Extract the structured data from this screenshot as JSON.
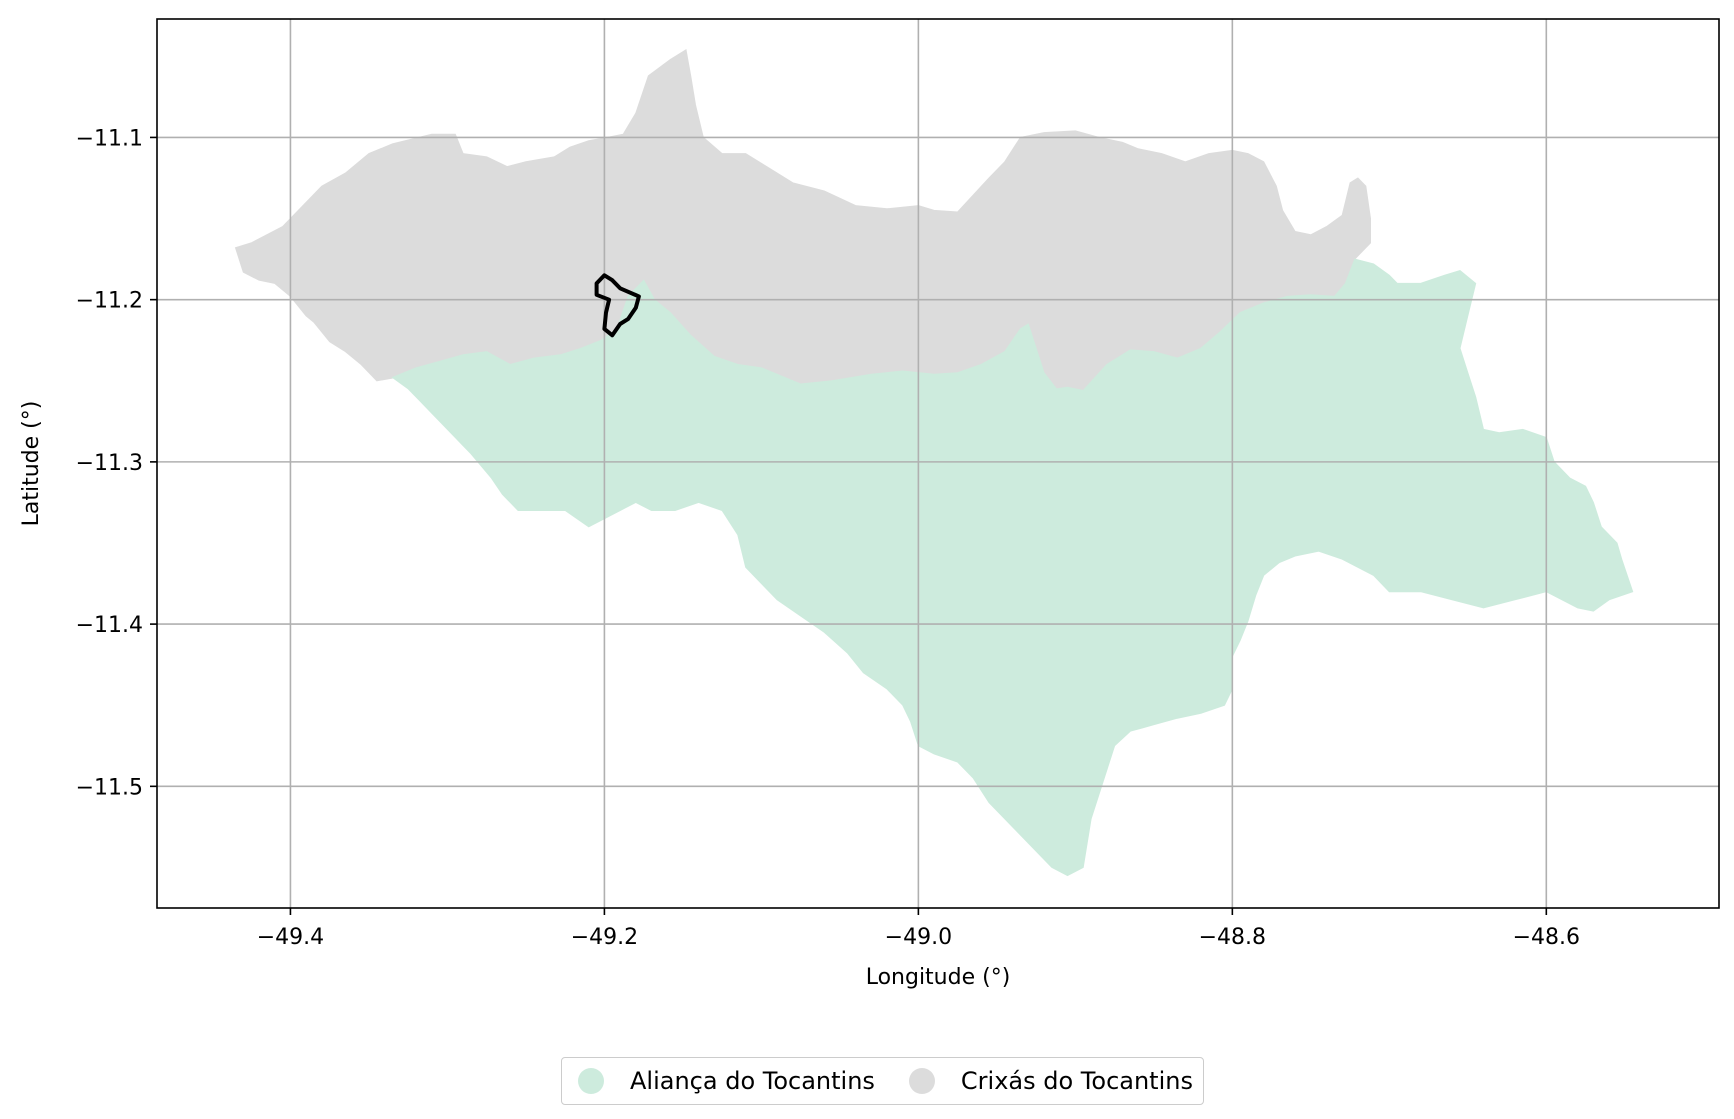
{
  "chart_data": {
    "type": "map",
    "title": "",
    "xlabel": "Longitude (°)",
    "ylabel": "Latitude (°)",
    "xlim": [
      -49.485,
      -48.49
    ],
    "ylim": [
      -11.575,
      -11.027
    ],
    "xticks": [
      -49.4,
      -49.2,
      -49.0,
      -48.8,
      -48.6
    ],
    "yticks": [
      -11.1,
      -11.2,
      -11.3,
      -11.4,
      -11.5
    ],
    "xtick_labels": [
      "−49.4",
      "−49.2",
      "−49.0",
      "−48.8",
      "−48.6"
    ],
    "ytick_labels": [
      "−11.1",
      "−11.2",
      "−11.3",
      "−11.4",
      "−11.5"
    ],
    "grid": true,
    "legend_position": "bottom-center, below axes",
    "regions": [
      {
        "name": "Crixás do Tocantins",
        "color": "#dcdcdc",
        "polygon": [
          [
            -49.435,
            -11.168
          ],
          [
            -49.425,
            -11.165
          ],
          [
            -49.405,
            -11.155
          ],
          [
            -49.39,
            -11.14
          ],
          [
            -49.38,
            -11.13
          ],
          [
            -49.365,
            -11.122
          ],
          [
            -49.35,
            -11.11
          ],
          [
            -49.335,
            -11.104
          ],
          [
            -49.31,
            -11.098
          ],
          [
            -49.295,
            -11.098
          ],
          [
            -49.29,
            -11.11
          ],
          [
            -49.275,
            -11.112
          ],
          [
            -49.262,
            -11.118
          ],
          [
            -49.25,
            -11.115
          ],
          [
            -49.232,
            -11.112
          ],
          [
            -49.222,
            -11.106
          ],
          [
            -49.21,
            -11.102
          ],
          [
            -49.198,
            -11.1
          ],
          [
            -49.188,
            -11.098
          ],
          [
            -49.18,
            -11.085
          ],
          [
            -49.172,
            -11.062
          ],
          [
            -49.158,
            -11.052
          ],
          [
            -49.148,
            -11.046
          ],
          [
            -49.145,
            -11.062
          ],
          [
            -49.142,
            -11.08
          ],
          [
            -49.137,
            -11.1
          ],
          [
            -49.125,
            -11.11
          ],
          [
            -49.11,
            -11.11
          ],
          [
            -49.09,
            -11.122
          ],
          [
            -49.08,
            -11.128
          ],
          [
            -49.06,
            -11.133
          ],
          [
            -49.04,
            -11.142
          ],
          [
            -49.02,
            -11.144
          ],
          [
            -49.0,
            -11.142
          ],
          [
            -48.99,
            -11.145
          ],
          [
            -48.975,
            -11.146
          ],
          [
            -48.955,
            -11.125
          ],
          [
            -48.945,
            -11.115
          ],
          [
            -48.935,
            -11.1
          ],
          [
            -48.92,
            -11.097
          ],
          [
            -48.9,
            -11.096
          ],
          [
            -48.885,
            -11.1
          ],
          [
            -48.87,
            -11.103
          ],
          [
            -48.86,
            -11.107
          ],
          [
            -48.845,
            -11.11
          ],
          [
            -48.83,
            -11.115
          ],
          [
            -48.815,
            -11.11
          ],
          [
            -48.8,
            -11.108
          ],
          [
            -48.79,
            -11.11
          ],
          [
            -48.78,
            -11.115
          ],
          [
            -48.772,
            -11.13
          ],
          [
            -48.768,
            -11.145
          ],
          [
            -48.76,
            -11.158
          ],
          [
            -48.75,
            -11.16
          ],
          [
            -48.74,
            -11.155
          ],
          [
            -48.73,
            -11.148
          ],
          [
            -48.725,
            -11.128
          ],
          [
            -48.72,
            -11.125
          ],
          [
            -48.715,
            -11.13
          ],
          [
            -48.712,
            -11.15
          ],
          [
            -48.712,
            -11.165
          ],
          [
            -48.722,
            -11.175
          ],
          [
            -48.728,
            -11.19
          ],
          [
            -48.735,
            -11.198
          ],
          [
            -48.75,
            -11.197
          ],
          [
            -48.765,
            -11.198
          ],
          [
            -48.78,
            -11.202
          ],
          [
            -48.795,
            -11.208
          ],
          [
            -48.808,
            -11.22
          ],
          [
            -48.82,
            -11.23
          ],
          [
            -48.835,
            -11.236
          ],
          [
            -48.85,
            -11.232
          ],
          [
            -48.865,
            -11.231
          ],
          [
            -48.88,
            -11.24
          ],
          [
            -48.895,
            -11.256
          ],
          [
            -48.905,
            -11.254
          ],
          [
            -48.912,
            -11.255
          ],
          [
            -48.92,
            -11.245
          ],
          [
            -48.93,
            -11.215
          ],
          [
            -48.935,
            -11.218
          ],
          [
            -48.945,
            -11.232
          ],
          [
            -48.96,
            -11.24
          ],
          [
            -48.975,
            -11.245
          ],
          [
            -48.99,
            -11.246
          ],
          [
            -49.01,
            -11.244
          ],
          [
            -49.03,
            -11.246
          ],
          [
            -49.055,
            -11.25
          ],
          [
            -49.075,
            -11.252
          ],
          [
            -49.1,
            -11.242
          ],
          [
            -49.115,
            -11.24
          ],
          [
            -49.13,
            -11.235
          ],
          [
            -49.145,
            -11.222
          ],
          [
            -49.158,
            -11.208
          ],
          [
            -49.168,
            -11.2
          ],
          [
            -49.175,
            -11.188
          ],
          [
            -49.185,
            -11.198
          ],
          [
            -49.192,
            -11.218
          ],
          [
            -49.202,
            -11.225
          ],
          [
            -49.215,
            -11.23
          ],
          [
            -49.228,
            -11.234
          ],
          [
            -49.245,
            -11.236
          ],
          [
            -49.26,
            -11.24
          ],
          [
            -49.275,
            -11.232
          ],
          [
            -49.29,
            -11.234
          ],
          [
            -49.305,
            -11.238
          ],
          [
            -49.32,
            -11.242
          ],
          [
            -49.333,
            -11.248
          ],
          [
            -49.345,
            -11.25
          ],
          [
            -49.355,
            -11.24
          ],
          [
            -49.365,
            -11.232
          ],
          [
            -49.375,
            -11.226
          ],
          [
            -49.385,
            -11.214
          ],
          [
            -49.39,
            -11.21
          ],
          [
            -49.4,
            -11.198
          ],
          [
            -49.41,
            -11.19
          ],
          [
            -49.42,
            -11.188
          ],
          [
            -49.43,
            -11.183
          ]
        ]
      },
      {
        "name": "Aliança do Tocantins",
        "color": "#cdebdd",
        "polygon": [
          [
            -49.335,
            -11.248
          ],
          [
            -49.32,
            -11.242
          ],
          [
            -49.305,
            -11.238
          ],
          [
            -49.29,
            -11.234
          ],
          [
            -49.275,
            -11.232
          ],
          [
            -49.26,
            -11.24
          ],
          [
            -49.245,
            -11.236
          ],
          [
            -49.228,
            -11.234
          ],
          [
            -49.215,
            -11.23
          ],
          [
            -49.202,
            -11.225
          ],
          [
            -49.192,
            -11.218
          ],
          [
            -49.185,
            -11.198
          ],
          [
            -49.175,
            -11.188
          ],
          [
            -49.168,
            -11.2
          ],
          [
            -49.158,
            -11.208
          ],
          [
            -49.145,
            -11.222
          ],
          [
            -49.13,
            -11.235
          ],
          [
            -49.115,
            -11.24
          ],
          [
            -49.1,
            -11.242
          ],
          [
            -49.075,
            -11.252
          ],
          [
            -49.055,
            -11.25
          ],
          [
            -49.03,
            -11.246
          ],
          [
            -49.01,
            -11.244
          ],
          [
            -48.99,
            -11.246
          ],
          [
            -48.975,
            -11.245
          ],
          [
            -48.96,
            -11.24
          ],
          [
            -48.945,
            -11.232
          ],
          [
            -48.935,
            -11.218
          ],
          [
            -48.93,
            -11.215
          ],
          [
            -48.92,
            -11.245
          ],
          [
            -48.912,
            -11.255
          ],
          [
            -48.905,
            -11.254
          ],
          [
            -48.895,
            -11.256
          ],
          [
            -48.88,
            -11.24
          ],
          [
            -48.865,
            -11.231
          ],
          [
            -48.85,
            -11.232
          ],
          [
            -48.835,
            -11.236
          ],
          [
            -48.82,
            -11.23
          ],
          [
            -48.808,
            -11.22
          ],
          [
            -48.795,
            -11.208
          ],
          [
            -48.78,
            -11.202
          ],
          [
            -48.765,
            -11.198
          ],
          [
            -48.75,
            -11.197
          ],
          [
            -48.735,
            -11.198
          ],
          [
            -48.728,
            -11.19
          ],
          [
            -48.722,
            -11.175
          ],
          [
            -48.71,
            -11.178
          ],
          [
            -48.7,
            -11.185
          ],
          [
            -48.695,
            -11.19
          ],
          [
            -48.68,
            -11.19
          ],
          [
            -48.665,
            -11.185
          ],
          [
            -48.655,
            -11.182
          ],
          [
            -48.645,
            -11.19
          ],
          [
            -48.65,
            -11.21
          ],
          [
            -48.655,
            -11.23
          ],
          [
            -48.65,
            -11.245
          ],
          [
            -48.645,
            -11.26
          ],
          [
            -48.64,
            -11.28
          ],
          [
            -48.63,
            -11.282
          ],
          [
            -48.615,
            -11.28
          ],
          [
            -48.6,
            -11.285
          ],
          [
            -48.595,
            -11.3
          ],
          [
            -48.585,
            -11.31
          ],
          [
            -48.575,
            -11.315
          ],
          [
            -48.57,
            -11.325
          ],
          [
            -48.565,
            -11.34
          ],
          [
            -48.555,
            -11.35
          ],
          [
            -48.552,
            -11.36
          ],
          [
            -48.545,
            -11.38
          ],
          [
            -48.56,
            -11.385
          ],
          [
            -48.57,
            -11.392
          ],
          [
            -48.58,
            -11.39
          ],
          [
            -48.6,
            -11.38
          ],
          [
            -48.62,
            -11.385
          ],
          [
            -48.64,
            -11.39
          ],
          [
            -48.66,
            -11.385
          ],
          [
            -48.68,
            -11.38
          ],
          [
            -48.7,
            -11.38
          ],
          [
            -48.71,
            -11.37
          ],
          [
            -48.72,
            -11.365
          ],
          [
            -48.73,
            -11.36
          ],
          [
            -48.745,
            -11.355
          ],
          [
            -48.76,
            -11.358
          ],
          [
            -48.77,
            -11.362
          ],
          [
            -48.78,
            -11.37
          ],
          [
            -48.785,
            -11.382
          ],
          [
            -48.79,
            -11.398
          ],
          [
            -48.795,
            -11.41
          ],
          [
            -48.8,
            -11.42
          ],
          [
            -48.8,
            -11.44
          ],
          [
            -48.805,
            -11.45
          ],
          [
            -48.82,
            -11.455
          ],
          [
            -48.835,
            -11.458
          ],
          [
            -48.85,
            -11.462
          ],
          [
            -48.865,
            -11.466
          ],
          [
            -48.875,
            -11.475
          ],
          [
            -48.88,
            -11.49
          ],
          [
            -48.89,
            -11.52
          ],
          [
            -48.895,
            -11.55
          ],
          [
            -48.905,
            -11.555
          ],
          [
            -48.915,
            -11.55
          ],
          [
            -48.925,
            -11.54
          ],
          [
            -48.94,
            -11.525
          ],
          [
            -48.955,
            -11.51
          ],
          [
            -48.965,
            -11.495
          ],
          [
            -48.975,
            -11.485
          ],
          [
            -48.99,
            -11.48
          ],
          [
            -49.0,
            -11.475
          ],
          [
            -49.005,
            -11.46
          ],
          [
            -49.01,
            -11.45
          ],
          [
            -49.02,
            -11.44
          ],
          [
            -49.035,
            -11.43
          ],
          [
            -49.045,
            -11.418
          ],
          [
            -49.06,
            -11.405
          ],
          [
            -49.075,
            -11.395
          ],
          [
            -49.09,
            -11.385
          ],
          [
            -49.1,
            -11.375
          ],
          [
            -49.11,
            -11.365
          ],
          [
            -49.115,
            -11.345
          ],
          [
            -49.125,
            -11.33
          ],
          [
            -49.14,
            -11.325
          ],
          [
            -49.155,
            -11.33
          ],
          [
            -49.17,
            -11.33
          ],
          [
            -49.18,
            -11.325
          ],
          [
            -49.19,
            -11.33
          ],
          [
            -49.2,
            -11.335
          ],
          [
            -49.21,
            -11.34
          ],
          [
            -49.225,
            -11.33
          ],
          [
            -49.24,
            -11.33
          ],
          [
            -49.255,
            -11.33
          ],
          [
            -49.265,
            -11.32
          ],
          [
            -49.272,
            -11.31
          ],
          [
            -49.285,
            -11.295
          ],
          [
            -49.29,
            -11.29
          ],
          [
            -49.295,
            -11.285
          ],
          [
            -49.31,
            -11.27
          ],
          [
            -49.318,
            -11.262
          ],
          [
            -49.325,
            -11.255
          ]
        ]
      }
    ],
    "highlight_outline": {
      "color": "#000000",
      "polygon": [
        [
          -49.2,
          -11.185
        ],
        [
          -49.195,
          -11.188
        ],
        [
          -49.19,
          -11.193
        ],
        [
          -49.178,
          -11.198
        ],
        [
          -49.18,
          -11.205
        ],
        [
          -49.185,
          -11.212
        ],
        [
          -49.19,
          -11.215
        ],
        [
          -49.195,
          -11.222
        ],
        [
          -49.2,
          -11.218
        ],
        [
          -49.199,
          -11.208
        ],
        [
          -49.197,
          -11.2
        ],
        [
          -49.205,
          -11.197
        ],
        [
          -49.205,
          -11.19
        ]
      ]
    }
  },
  "legend": {
    "items": [
      {
        "label": "Aliança do Tocantins",
        "color": "#cdebdd"
      },
      {
        "label": "Crixás do Tocantins",
        "color": "#dcdcdc"
      }
    ]
  }
}
